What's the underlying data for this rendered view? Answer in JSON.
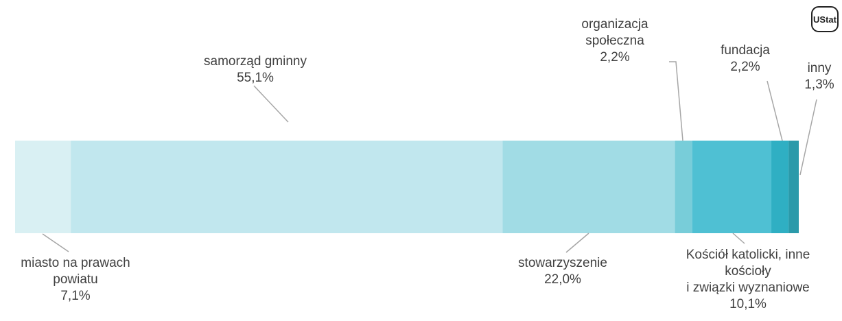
{
  "chart_data": {
    "type": "stacked-bar",
    "orientation": "horizontal",
    "logo": "UStat",
    "xlim": [
      0,
      100
    ],
    "series": [
      {
        "name": "miasto na prawach\npowiatu",
        "color": "#d9f0f3",
        "values": [
          7.1
        ],
        "value_labels": [
          "7,1%"
        ]
      },
      {
        "name": "samorząd gminny",
        "color": "#c1e7ee",
        "values": [
          55.1
        ],
        "value_labels": [
          "55,1%"
        ]
      },
      {
        "name": "stowarzyszenie",
        "color": "#a1dce5",
        "values": [
          22.0
        ],
        "value_labels": [
          "22,0%"
        ]
      },
      {
        "name": "organizacja\nspołeczna",
        "color": "#78cdd9",
        "values": [
          2.2
        ],
        "value_labels": [
          "2,2%"
        ]
      },
      {
        "name": "Kościół katolicki, inne\nkościoły\ni związki wyznaniowe",
        "color": "#4fc0d3",
        "values": [
          10.1
        ],
        "value_labels": [
          "10,1%"
        ]
      },
      {
        "name": "fundacja",
        "color": "#2fafc3",
        "values": [
          2.2
        ],
        "value_labels": [
          "2,2%"
        ]
      },
      {
        "name": "inny",
        "color": "#2b9aaa",
        "values": [
          1.3
        ],
        "value_labels": [
          "1,3%"
        ]
      }
    ]
  }
}
